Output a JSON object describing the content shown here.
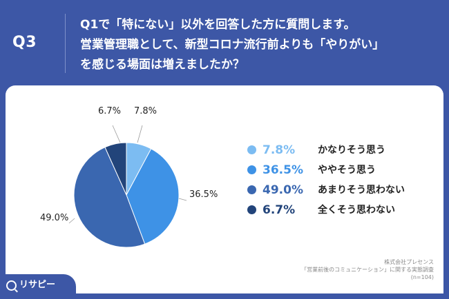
{
  "header": {
    "q_number": "Q3",
    "question_lines": [
      "Q1で「特にない」以外を回答した方に質問します。",
      "営業管理職として、新型コロナ流行前よりも「やりがい」",
      "を感じる場面は増えましたか？"
    ]
  },
  "chart_data": {
    "type": "pie",
    "start": "12 o'clock, clockwise",
    "categories": [
      "かなりそう思う",
      "ややそう思う",
      "あまりそう思わない",
      "全くそう思わない"
    ],
    "values": [
      7.8,
      36.5,
      49.0,
      6.7
    ],
    "data_labels": [
      "7.8%",
      "36.5%",
      "49.0%",
      "6.7%"
    ],
    "colors": [
      "#7cbcf2",
      "#3e92e6",
      "#3a67b0",
      "#22447a"
    ],
    "legend_placement": "right"
  },
  "legend": [
    {
      "pct": "7.8%",
      "label": "かなりそう思う",
      "color": "#7cbcf2",
      "text_color": "#7cbcf2"
    },
    {
      "pct": "36.5%",
      "label": "ややそう思う",
      "color": "#3e92e6",
      "text_color": "#3e92e6"
    },
    {
      "pct": "49.0%",
      "label": "あまりそう思わない",
      "color": "#3a67b0",
      "text_color": "#3a67b0"
    },
    {
      "pct": "6.7%",
      "label": "全くそう思わない",
      "color": "#22447a",
      "text_color": "#22447a"
    }
  ],
  "credit": {
    "line1": "株式会社プレセンス",
    "line2": "「営業前後のコミュニケーション」に関する実態調査",
    "line3": "(n=104)"
  },
  "logo": {
    "text": "リサピー"
  }
}
